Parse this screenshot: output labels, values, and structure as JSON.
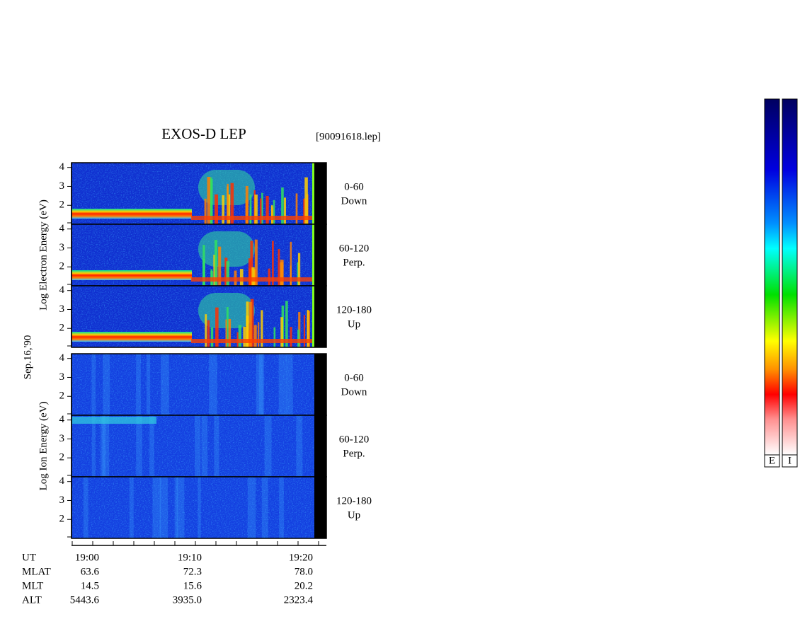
{
  "title": "EXOS-D LEP",
  "file": "[90091618.lep]",
  "date": "Sep.16,'90",
  "energy_axis": {
    "ylim": [
      1,
      4.25
    ],
    "yticks": [
      2,
      3,
      4
    ]
  },
  "groups": [
    {
      "label": "Log  Electron  Energy (eV)",
      "species": "electron",
      "panels": [
        [
          "0-60",
          "Down"
        ],
        [
          "60-120",
          "Perp."
        ],
        [
          "120-180",
          "Up"
        ]
      ]
    },
    {
      "label": "Log  Ion  Energy (eV)",
      "species": "ion",
      "panels": [
        [
          "0-60",
          "Down"
        ],
        [
          "60-120",
          "Perp."
        ],
        [
          "120-180",
          "Up"
        ]
      ]
    }
  ],
  "ephemeris": [
    {
      "name": "UT",
      "values": [
        "19:00",
        "19:10",
        "19:20"
      ]
    },
    {
      "name": "MLAT",
      "values": [
        "63.6",
        "72.3",
        "78.0"
      ]
    },
    {
      "name": "MLT",
      "values": [
        "14.5",
        "15.6",
        "20.2"
      ]
    },
    {
      "name": "ALT",
      "values": [
        "5443.6",
        "3935.0",
        "2323.4"
      ]
    }
  ],
  "colorbars": [
    "E",
    "I"
  ]
}
